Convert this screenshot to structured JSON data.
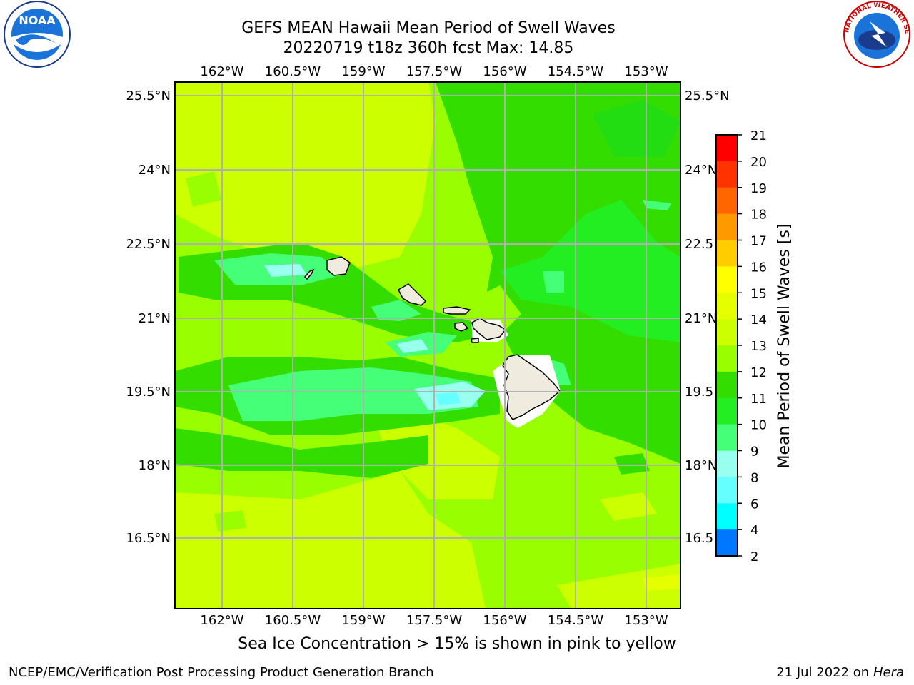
{
  "title": {
    "line1": "GEFS MEAN Hawaii Mean Period of Swell Waves",
    "line2": "20220719 t18z 360h fcst   Max: 14.85"
  },
  "logos": {
    "left": {
      "icon": "noaa-logo-icon",
      "text": "NOAA"
    },
    "right": {
      "icon": "nws-logo-icon",
      "text": "NATIONAL WEATHER SERVICE"
    }
  },
  "map": {
    "lon_ticks": [
      "162°W",
      "160.5°W",
      "159°W",
      "157.5°W",
      "156°W",
      "154.5°W",
      "153°W"
    ],
    "lat_ticks": [
      "25.5°N",
      "24°N",
      "22.5°N",
      "21°N",
      "19.5°N",
      "18°N",
      "16.5°N"
    ],
    "lat_ticks_right": [
      "25.5°N",
      "24°N",
      "22.5",
      "21°N",
      "19.5",
      "18°N",
      "16.5"
    ],
    "field": "Mean Period of Swell Waves"
  },
  "colorbar": {
    "label": "Mean Period of Swell Waves [s]",
    "ticks": [
      "21",
      "20",
      "19",
      "18",
      "17",
      "16",
      "15",
      "14",
      "13",
      "12",
      "11",
      "10",
      "9",
      "8",
      "6",
      "4",
      "2"
    ],
    "colors": [
      "#ff0000",
      "#ff3300",
      "#ff6600",
      "#ff9900",
      "#ffcc00",
      "#ffff00",
      "#e6ff00",
      "#ccff00",
      "#99ff00",
      "#33dd00",
      "#22ee22",
      "#44ff77",
      "#99ffee",
      "#66ffff",
      "#00ffff",
      "#0077ff",
      "#0000ff"
    ]
  },
  "caption": "Sea Ice Concentration > 15% is shown in pink to yellow",
  "footer": {
    "left": "NCEP/EMC/Verification Post Processing Product Generation Branch",
    "right_date": "21 Jul 2022 on ",
    "right_host": "Hera"
  }
}
